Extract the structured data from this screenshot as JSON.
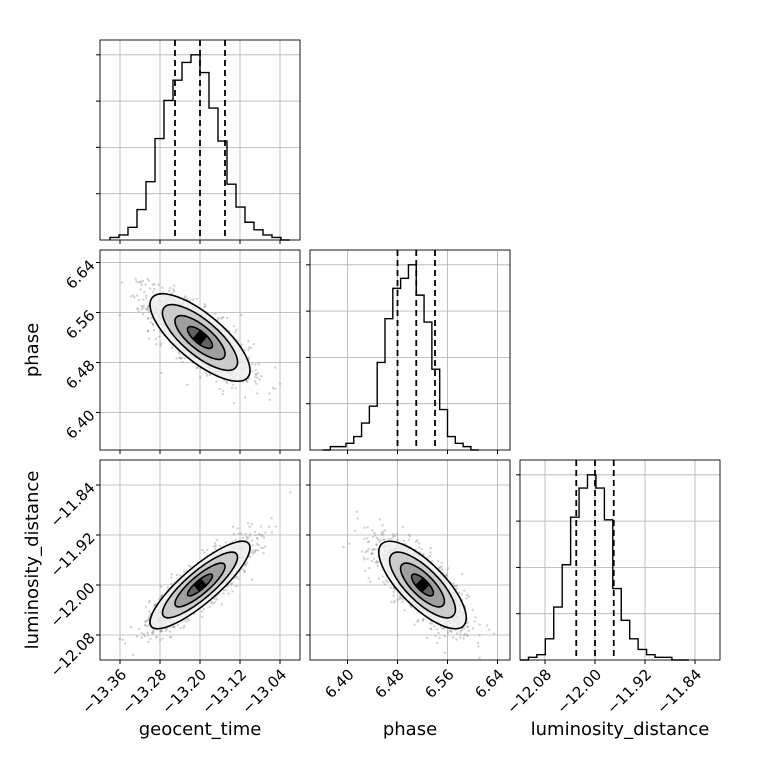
{
  "chart_data": {
    "type": "corner",
    "parameters": [
      "geocent_time",
      "phase",
      "luminosity_distance"
    ],
    "grid": true,
    "ranges": {
      "geocent_time": [
        -13.4,
        -13.0
      ],
      "phase": [
        6.34,
        6.66
      ],
      "luminosity_distance": [
        -12.12,
        -11.8
      ]
    },
    "ticks": {
      "geocent_time": [
        -13.36,
        -13.28,
        -13.2,
        -13.12,
        -13.04
      ],
      "phase": [
        6.4,
        6.48,
        6.56,
        6.64
      ],
      "luminosity_distance": [
        -12.08,
        -12.0,
        -11.92,
        -11.84
      ]
    },
    "tick_labels": {
      "geocent_time": [
        "−13.36",
        "−13.28",
        "−13.20",
        "−13.12",
        "−13.04"
      ],
      "phase": [
        "6.40",
        "6.48",
        "6.56",
        "6.64"
      ],
      "luminosity_distance": [
        "−12.08",
        "−12.00",
        "−11.92",
        "−11.84"
      ]
    },
    "marginals": [
      {
        "param": "geocent_time",
        "bin_edges": [
          -13.38,
          -13.362,
          -13.344,
          -13.326,
          -13.308,
          -13.29,
          -13.272,
          -13.254,
          -13.236,
          -13.218,
          -13.2,
          -13.182,
          -13.164,
          -13.146,
          -13.128,
          -13.11,
          -13.092,
          -13.074,
          -13.056,
          -13.038,
          -13.02
        ],
        "counts": [
          1,
          2,
          5,
          12,
          23,
          40,
          55,
          63,
          70,
          73,
          66,
          52,
          39,
          22,
          13,
          7,
          4,
          2,
          1,
          0
        ],
        "quantiles": [
          -13.25,
          -13.2,
          -13.15
        ]
      },
      {
        "param": "phase",
        "bin_edges": [
          6.36,
          6.3725,
          6.385,
          6.3975,
          6.41,
          6.4225,
          6.435,
          6.4475,
          6.46,
          6.4725,
          6.485,
          6.4975,
          6.51,
          6.5225,
          6.535,
          6.5475,
          6.56,
          6.5725,
          6.585,
          6.5975,
          6.61
        ],
        "counts": [
          0,
          1,
          1,
          2,
          4,
          8,
          13,
          26,
          39,
          48,
          51,
          55,
          46,
          38,
          24,
          12,
          4,
          2,
          1,
          0
        ],
        "quantiles": [
          6.48,
          6.51,
          6.54
        ]
      },
      {
        "param": "luminosity_distance",
        "bin_edges": [
          -12.12,
          -12.1065,
          -12.093,
          -12.0795,
          -12.066,
          -12.0525,
          -12.039,
          -12.0255,
          -12.012,
          -11.9985,
          -11.985,
          -11.9715,
          -11.958,
          -11.9445,
          -11.931,
          -11.9175,
          -11.904,
          -11.8905,
          -11.877,
          -11.8635,
          -11.85
        ],
        "counts": [
          0,
          1,
          2,
          8,
          20,
          36,
          54,
          65,
          70,
          65,
          53,
          27,
          15,
          8,
          4,
          2,
          1,
          1,
          0,
          0
        ],
        "quantiles": [
          -12.03,
          -12.0,
          -11.97
        ]
      }
    ],
    "joint": [
      {
        "x": "geocent_time",
        "y": "phase",
        "mean": [
          -13.2,
          6.52
        ],
        "std": [
          0.05,
          0.035
        ],
        "rho": -0.75
      },
      {
        "x": "geocent_time",
        "y": "luminosity_distance",
        "mean": [
          -13.2,
          -12.0
        ],
        "std": [
          0.05,
          0.035
        ],
        "rho": 0.85
      },
      {
        "x": "phase",
        "y": "luminosity_distance",
        "mean": [
          6.52,
          -12.0
        ],
        "std": [
          0.035,
          0.035
        ],
        "rho": -0.75
      }
    ],
    "contour_levels_sigma": [
      0.5,
      1.0,
      1.5,
      2.0
    ]
  }
}
